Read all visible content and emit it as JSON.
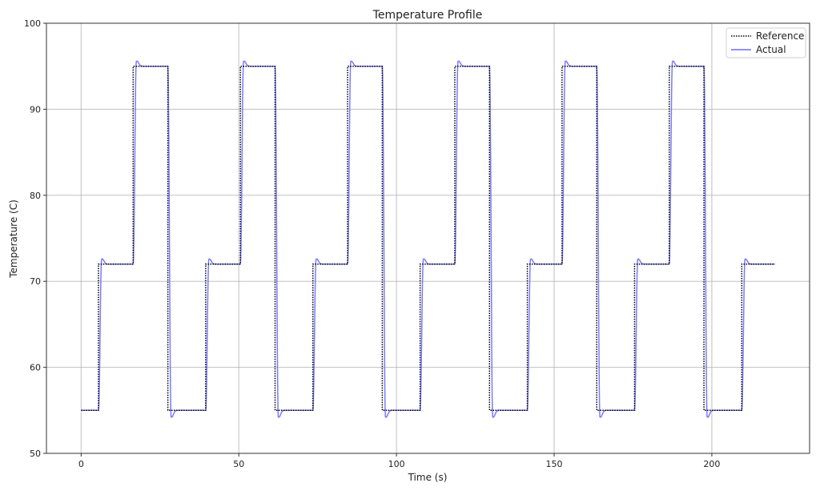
{
  "chart_data": {
    "type": "line",
    "title": "Temperature Profile",
    "xlabel": "Time (s)",
    "ylabel": "Temperature (C)",
    "xlim": [
      -11,
      231
    ],
    "ylim": [
      50,
      100
    ],
    "xticks": [
      0,
      50,
      100,
      150,
      200
    ],
    "yticks": [
      50,
      60,
      70,
      80,
      90,
      100
    ],
    "grid": true,
    "legend_position": "upper right",
    "series": [
      {
        "name": "Reference",
        "style": "dotted",
        "color": "#000000",
        "steps": [
          {
            "t0": 0,
            "t1": 5.5,
            "value": 55
          },
          {
            "t0": 5.5,
            "t1": 16.5,
            "value": 72
          },
          {
            "t0": 16.5,
            "t1": 27.5,
            "value": 95
          },
          {
            "t0": 27.5,
            "t1": 39.5,
            "value": 55
          },
          {
            "t0": 39.5,
            "t1": 50.5,
            "value": 72
          },
          {
            "t0": 50.5,
            "t1": 61.5,
            "value": 95
          },
          {
            "t0": 61.5,
            "t1": 73.5,
            "value": 55
          },
          {
            "t0": 73.5,
            "t1": 84.5,
            "value": 72
          },
          {
            "t0": 84.5,
            "t1": 95.5,
            "value": 95
          },
          {
            "t0": 95.5,
            "t1": 107.5,
            "value": 55
          },
          {
            "t0": 107.5,
            "t1": 118.5,
            "value": 72
          },
          {
            "t0": 118.5,
            "t1": 129.5,
            "value": 95
          },
          {
            "t0": 129.5,
            "t1": 141.5,
            "value": 55
          },
          {
            "t0": 141.5,
            "t1": 152.5,
            "value": 72
          },
          {
            "t0": 152.5,
            "t1": 163.5,
            "value": 95
          },
          {
            "t0": 163.5,
            "t1": 175.5,
            "value": 55
          },
          {
            "t0": 175.5,
            "t1": 186.5,
            "value": 72
          },
          {
            "t0": 186.5,
            "t1": 197.5,
            "value": 95
          },
          {
            "t0": 197.5,
            "t1": 209.5,
            "value": 55
          },
          {
            "t0": 209.5,
            "t1": 220,
            "value": 72
          }
        ]
      },
      {
        "name": "Actual",
        "style": "solid",
        "color": "#6b6bff",
        "description": "Tracks reference with ~1 s lag; overshoot about +0.6 C after rises and undershoot about -0.8 C after drops, settling within ~3 s",
        "overshoot": 0.6,
        "undershoot": 0.8
      }
    ]
  },
  "legend": {
    "items": [
      {
        "label": "Reference"
      },
      {
        "label": "Actual"
      }
    ]
  },
  "colors": {
    "reference": "#000000",
    "actual": "#6b6bff",
    "grid": "#b0b0b0",
    "axis": "#333333"
  }
}
